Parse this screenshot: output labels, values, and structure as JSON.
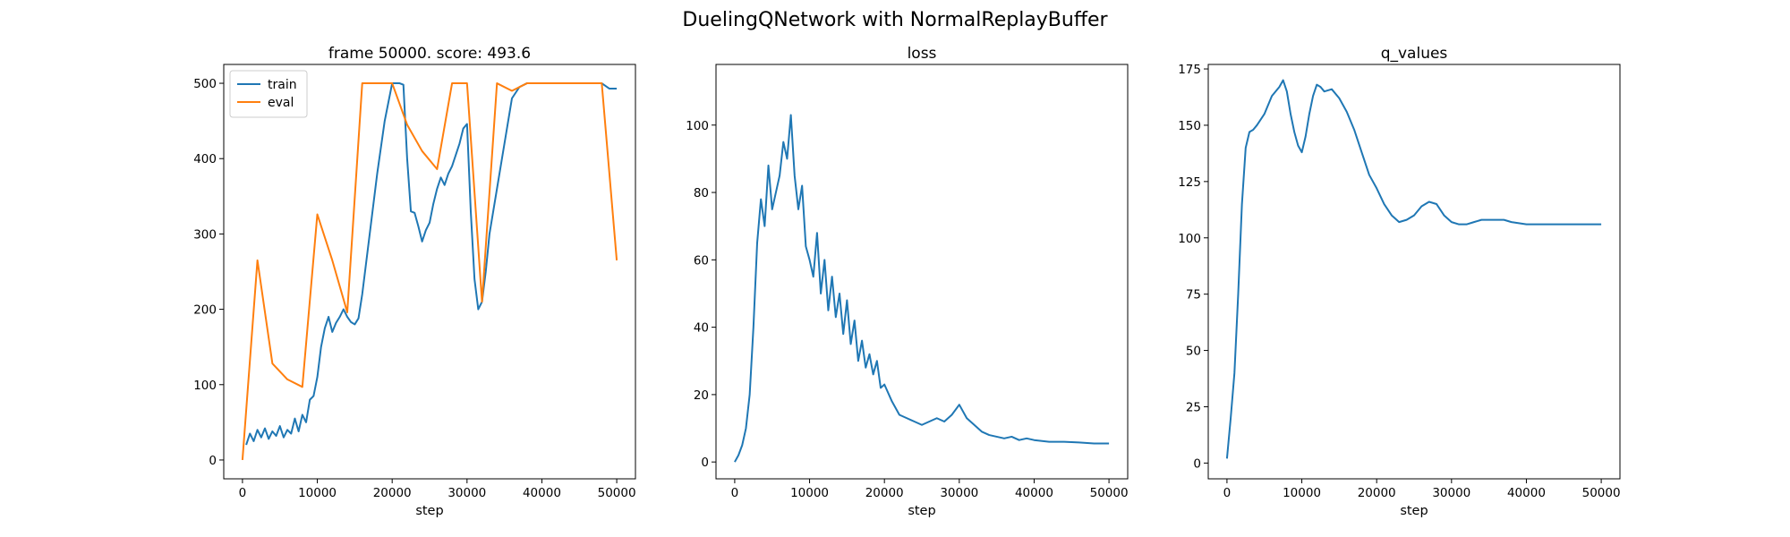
{
  "figure": {
    "suptitle": "DuelingQNetwork with NormalReplayBuffer"
  },
  "chart_data": [
    {
      "type": "line",
      "title": "frame 50000. score: 493.6",
      "xlabel": "step",
      "ylabel": "",
      "xlim": [
        -2500,
        52500
      ],
      "ylim": [
        -25,
        525
      ],
      "xticks": [
        0,
        10000,
        20000,
        30000,
        40000,
        50000
      ],
      "yticks": [
        0,
        100,
        200,
        300,
        400,
        500
      ],
      "legend": "upper-left",
      "grid": false,
      "series": [
        {
          "name": "train",
          "color": "#1f77b4",
          "x": [
            500,
            1000,
            1500,
            2000,
            2500,
            3000,
            3500,
            4000,
            4500,
            5000,
            5500,
            6000,
            6500,
            7000,
            7500,
            8000,
            8500,
            9000,
            9500,
            10000,
            10500,
            11000,
            11500,
            12000,
            12500,
            13000,
            13500,
            14000,
            14500,
            15000,
            15500,
            16000,
            17000,
            18000,
            19000,
            20000,
            20500,
            21000,
            21500,
            22000,
            22500,
            23000,
            23500,
            24000,
            24500,
            25000,
            25500,
            26000,
            26500,
            27000,
            27500,
            28000,
            28500,
            29000,
            29500,
            30000,
            30500,
            31000,
            31500,
            32000,
            32500,
            33000,
            34000,
            35000,
            36000,
            37000,
            38000,
            39000,
            40000,
            42000,
            44000,
            46000,
            48000,
            49000,
            50000
          ],
          "y": [
            20,
            35,
            25,
            40,
            30,
            42,
            28,
            38,
            32,
            45,
            30,
            40,
            35,
            55,
            38,
            60,
            50,
            80,
            85,
            110,
            150,
            175,
            190,
            170,
            182,
            190,
            200,
            190,
            183,
            180,
            188,
            220,
            300,
            380,
            450,
            500,
            500,
            500,
            498,
            400,
            330,
            328,
            310,
            290,
            305,
            315,
            340,
            360,
            375,
            365,
            380,
            390,
            405,
            420,
            440,
            446,
            330,
            240,
            200,
            210,
            250,
            300,
            360,
            420,
            480,
            495,
            500,
            500,
            500,
            500,
            500,
            500,
            500,
            493,
            493
          ]
        },
        {
          "name": "eval",
          "color": "#ff7f0e",
          "x": [
            0,
            2000,
            4000,
            6000,
            8000,
            10000,
            12000,
            14000,
            16000,
            18000,
            20000,
            22000,
            24000,
            26000,
            28000,
            30000,
            32000,
            34000,
            36000,
            38000,
            40000,
            42000,
            44000,
            46000,
            48000,
            50000
          ],
          "y": [
            0,
            265,
            128,
            107,
            97,
            326,
            265,
            196,
            500,
            500,
            500,
            445,
            410,
            386,
            500,
            500,
            210,
            500,
            490,
            500,
            500,
            500,
            500,
            500,
            500,
            265
          ]
        }
      ]
    },
    {
      "type": "line",
      "title": "loss",
      "xlabel": "step",
      "ylabel": "",
      "xlim": [
        -2500,
        52500
      ],
      "ylim": [
        -5,
        118
      ],
      "xticks": [
        0,
        10000,
        20000,
        30000,
        40000,
        50000
      ],
      "yticks": [
        0,
        20,
        40,
        60,
        80,
        100
      ],
      "grid": false,
      "series": [
        {
          "color": "#1f77b4",
          "x": [
            0,
            500,
            1000,
            1500,
            2000,
            2500,
            3000,
            3500,
            4000,
            4500,
            5000,
            5500,
            6000,
            6500,
            7000,
            7500,
            8000,
            8500,
            9000,
            9500,
            10000,
            10500,
            11000,
            11500,
            12000,
            12500,
            13000,
            13500,
            14000,
            14500,
            15000,
            15500,
            16000,
            16500,
            17000,
            17500,
            18000,
            18500,
            19000,
            19500,
            20000,
            21000,
            22000,
            23000,
            24000,
            25000,
            26000,
            27000,
            28000,
            29000,
            30000,
            31000,
            32000,
            33000,
            34000,
            35000,
            36000,
            37000,
            38000,
            39000,
            40000,
            42000,
            44000,
            46000,
            48000,
            49000,
            50000
          ],
          "y": [
            0,
            2,
            5,
            10,
            20,
            40,
            65,
            78,
            70,
            88,
            75,
            80,
            85,
            95,
            90,
            103,
            85,
            75,
            82,
            64,
            60,
            55,
            68,
            50,
            60,
            45,
            55,
            43,
            50,
            38,
            48,
            35,
            42,
            30,
            36,
            28,
            32,
            26,
            30,
            22,
            23,
            18,
            14,
            13,
            12,
            11,
            12,
            13,
            12,
            14,
            17,
            13,
            11,
            9,
            8,
            7.5,
            7,
            7.5,
            6.5,
            7,
            6.5,
            6,
            6,
            5.8,
            5.5,
            5.5,
            5.5
          ]
        }
      ]
    },
    {
      "type": "line",
      "title": "q_values",
      "xlabel": "step",
      "ylabel": "",
      "xlim": [
        -2500,
        52500
      ],
      "ylim": [
        -7,
        177
      ],
      "xticks": [
        0,
        10000,
        20000,
        30000,
        40000,
        50000
      ],
      "yticks": [
        0,
        25,
        50,
        75,
        100,
        125,
        150,
        175
      ],
      "grid": false,
      "series": [
        {
          "color": "#1f77b4",
          "x": [
            0,
            500,
            1000,
            1500,
            2000,
            2500,
            3000,
            3500,
            4000,
            5000,
            6000,
            7000,
            7500,
            8000,
            8500,
            9000,
            9500,
            10000,
            10500,
            11000,
            11500,
            12000,
            12500,
            13000,
            14000,
            15000,
            16000,
            17000,
            18000,
            19000,
            20000,
            21000,
            22000,
            23000,
            24000,
            25000,
            26000,
            27000,
            28000,
            29000,
            30000,
            31000,
            32000,
            33000,
            34000,
            35000,
            36000,
            37000,
            38000,
            40000,
            42000,
            44000,
            46000,
            48000,
            50000
          ],
          "y": [
            2,
            20,
            40,
            75,
            115,
            140,
            147,
            148,
            150,
            155,
            163,
            167,
            170,
            165,
            155,
            147,
            141,
            138,
            145,
            155,
            163,
            168,
            167,
            165,
            166,
            162,
            156,
            148,
            138,
            128,
            122,
            115,
            110,
            107,
            108,
            110,
            114,
            116,
            115,
            110,
            107,
            106,
            106,
            107,
            108,
            108,
            108,
            108,
            107,
            106,
            106,
            106,
            106,
            106,
            106
          ]
        }
      ]
    }
  ]
}
